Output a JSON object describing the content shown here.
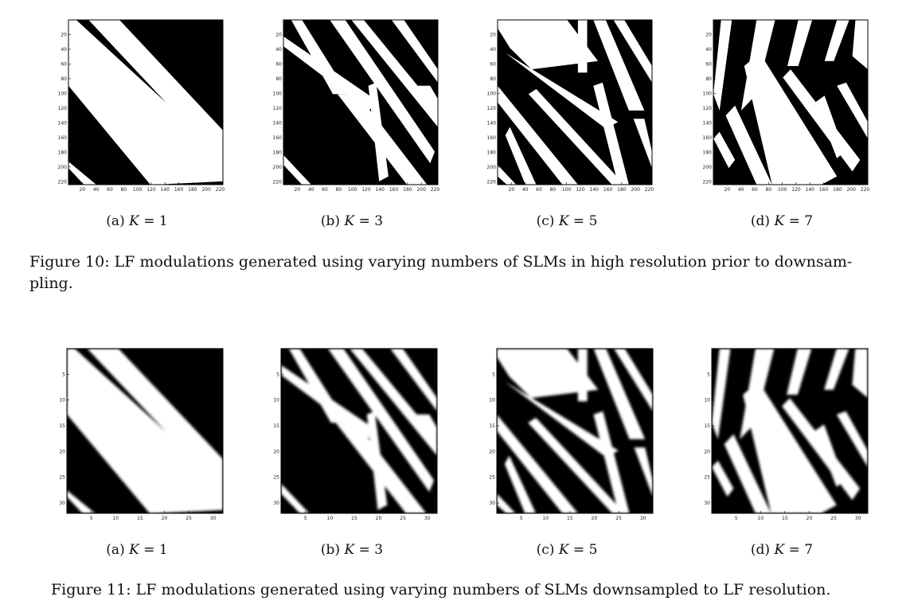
{
  "figure10": {
    "caption": "Figure 10: LF modulations generated using varying numbers of SLMs in high resolution prior to downsampling.",
    "caption_line1": "Figure 10: LF modulations generated using varying numbers of SLMs in high resolution prior to downsam-",
    "caption_line2": "pling.",
    "axis_max": 224,
    "ticks": [
      20,
      40,
      60,
      80,
      100,
      120,
      140,
      160,
      180,
      200,
      220
    ],
    "panels": [
      {
        "label": "(a)",
        "k_text": "K",
        "eq": " = 1",
        "k": 1
      },
      {
        "label": "(b)",
        "k_text": "K",
        "eq": " = 3",
        "k": 3
      },
      {
        "label": "(c)",
        "k_text": "K",
        "eq": " = 5",
        "k": 5
      },
      {
        "label": "(d)",
        "k_text": "K",
        "eq": " = 7",
        "k": 7
      }
    ]
  },
  "figure11": {
    "caption": "Figure 11: LF modulations generated using varying numbers of SLMs downsampled to LF resolution.",
    "axis_max": 32,
    "ticks": [
      5,
      10,
      15,
      20,
      25,
      30
    ],
    "panels": [
      {
        "label": "(a)",
        "k_text": "K",
        "eq": " = 1",
        "k": 1
      },
      {
        "label": "(b)",
        "k_text": "K",
        "eq": " = 3",
        "k": 3
      },
      {
        "label": "(c)",
        "k_text": "K",
        "eq": " = 5",
        "k": 5
      },
      {
        "label": "(d)",
        "k_text": "K",
        "eq": " = 7",
        "k": 7
      }
    ]
  }
}
